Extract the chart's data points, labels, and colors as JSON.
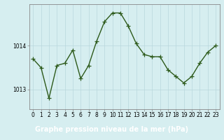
{
  "x": [
    0,
    1,
    2,
    3,
    4,
    5,
    6,
    7,
    8,
    9,
    10,
    11,
    12,
    13,
    14,
    15,
    16,
    17,
    18,
    19,
    20,
    21,
    22,
    23
  ],
  "y": [
    1013.7,
    1013.5,
    1012.8,
    1013.55,
    1013.6,
    1013.9,
    1013.25,
    1013.55,
    1014.1,
    1014.55,
    1014.75,
    1014.75,
    1014.45,
    1014.05,
    1013.8,
    1013.75,
    1013.75,
    1013.45,
    1013.3,
    1013.15,
    1013.3,
    1013.6,
    1013.85,
    1014.0
  ],
  "line_color": "#2d5a1b",
  "marker": "+",
  "markersize": 4,
  "linewidth": 1.0,
  "bg_color": "#d6eef0",
  "grid_color": "#b8d8dc",
  "ytick_labels": [
    "1013",
    "1014"
  ],
  "ytick_values": [
    1013.0,
    1014.0
  ],
  "ylim": [
    1012.55,
    1014.95
  ],
  "xlim": [
    -0.5,
    23.5
  ],
  "xtick_labels": [
    "0",
    "1",
    "2",
    "3",
    "4",
    "5",
    "6",
    "7",
    "8",
    "9",
    "10",
    "11",
    "12",
    "13",
    "14",
    "15",
    "16",
    "17",
    "18",
    "19",
    "20",
    "21",
    "22",
    "23"
  ],
  "xlabel": "Graphe pression niveau de la mer (hPa)",
  "title_fontsize": 7.0,
  "tick_fontsize": 5.5,
  "bottom_bg_color": "#4a7a28",
  "spine_color": "#888888"
}
